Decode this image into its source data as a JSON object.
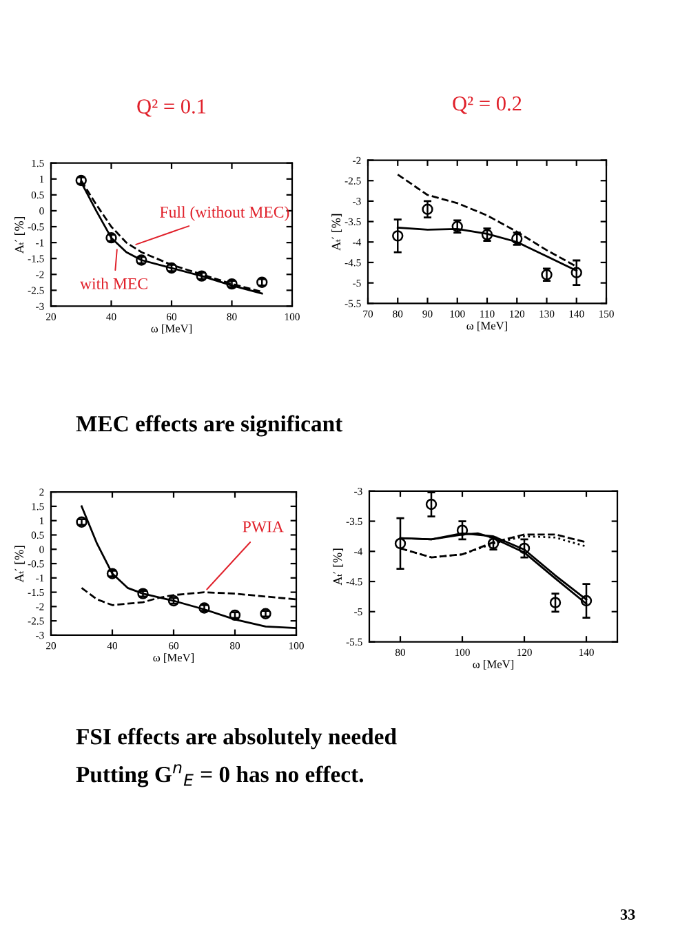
{
  "chart_data": [
    {
      "type": "line",
      "title": "Q² = 0.1",
      "xlabel": "ω [MeV]",
      "ylabel": "Aₜ′ [%]",
      "xlim": [
        20,
        100
      ],
      "xticks": [
        20,
        40,
        60,
        80,
        100
      ],
      "ylim": [
        -3,
        1.5
      ],
      "yticks": [
        -3,
        -2.5,
        -2,
        -1.5,
        -1,
        -0.5,
        0,
        0.5,
        1,
        1.5
      ],
      "grid": false,
      "series": [
        {
          "type": "scatter",
          "marker": "circle",
          "color": "#000000",
          "x": [
            30,
            40,
            50,
            60,
            70,
            80,
            90
          ],
          "values": [
            0.95,
            -0.85,
            -1.55,
            -1.8,
            -2.05,
            -2.3,
            -2.25
          ],
          "errors": [
            0.1,
            0.1,
            0.1,
            0.1,
            0.1,
            0.1,
            0.1
          ]
        },
        {
          "line_style": "solid",
          "color": "#000000",
          "x": [
            30,
            35,
            40,
            45,
            50,
            60,
            70,
            80,
            90
          ],
          "values": [
            0.9,
            0.0,
            -0.85,
            -1.3,
            -1.55,
            -1.8,
            -2.05,
            -2.35,
            -2.6
          ]
        },
        {
          "line_style": "dashed",
          "color": "#000000",
          "x": [
            30,
            35,
            40,
            45,
            50,
            60,
            70,
            80,
            90
          ],
          "values": [
            0.95,
            0.2,
            -0.5,
            -1.0,
            -1.3,
            -1.7,
            -2.0,
            -2.3,
            -2.55
          ]
        }
      ],
      "annotations": [
        {
          "text": "Full (without MEC)",
          "x": 47,
          "y": -1.1
        },
        {
          "text": "with MEC",
          "x": 42,
          "y": -1.1
        }
      ]
    },
    {
      "type": "line",
      "title": "Q² = 0.2",
      "xlabel": "ω [MeV]",
      "ylabel": "Aₜ′ [%]",
      "xlim": [
        70,
        150
      ],
      "xticks": [
        70,
        80,
        90,
        100,
        110,
        120,
        130,
        140,
        150
      ],
      "ylim": [
        -5.5,
        -2
      ],
      "yticks": [
        -5.5,
        -5,
        -4.5,
        -4,
        -3.5,
        -3,
        -2.5,
        -2
      ],
      "grid": false,
      "series": [
        {
          "type": "scatter",
          "marker": "circle",
          "color": "#000000",
          "x": [
            80,
            90,
            100,
            110,
            120,
            130,
            140
          ],
          "values": [
            -3.85,
            -3.2,
            -3.62,
            -3.82,
            -3.92,
            -4.8,
            -4.75
          ],
          "errors": [
            0.4,
            0.2,
            0.15,
            0.15,
            0.15,
            0.15,
            0.3
          ]
        },
        {
          "line_style": "solid",
          "color": "#000000",
          "x": [
            80,
            90,
            100,
            110,
            120,
            130,
            140
          ],
          "values": [
            -3.65,
            -3.7,
            -3.68,
            -3.8,
            -4.0,
            -4.35,
            -4.7
          ]
        },
        {
          "line_style": "dashed",
          "color": "#000000",
          "x": [
            80,
            90,
            100,
            110,
            120,
            130,
            140
          ],
          "values": [
            -2.35,
            -2.85,
            -3.05,
            -3.35,
            -3.75,
            -4.2,
            -4.6
          ]
        }
      ],
      "annotations": [
        "MEC effects are significant"
      ]
    },
    {
      "type": "line",
      "xlabel": "ω [MeV]",
      "ylabel": "Aₜ′ [%]",
      "xlim": [
        20,
        100
      ],
      "xticks": [
        20,
        40,
        60,
        80,
        100
      ],
      "ylim": [
        -3,
        2
      ],
      "yticks": [
        -3,
        -2.5,
        -2,
        -1.5,
        -1,
        -0.5,
        0,
        0.5,
        1,
        1.5,
        2
      ],
      "grid": false,
      "series": [
        {
          "type": "scatter",
          "marker": "circle",
          "color": "#000000",
          "x": [
            30,
            40,
            50,
            60,
            70,
            80,
            90
          ],
          "values": [
            0.95,
            -0.85,
            -1.55,
            -1.8,
            -2.05,
            -2.3,
            -2.25
          ],
          "errors": [
            0.1,
            0.1,
            0.1,
            0.1,
            0.1,
            0.1,
            0.1
          ]
        },
        {
          "line_style": "solid",
          "color": "#000000",
          "x": [
            30,
            35,
            40,
            45,
            50,
            60,
            70,
            80,
            90,
            100
          ],
          "values": [
            1.5,
            0.2,
            -0.85,
            -1.35,
            -1.55,
            -1.8,
            -2.1,
            -2.45,
            -2.7,
            -2.75
          ]
        },
        {
          "line_style": "dashed",
          "color": "#000000",
          "x": [
            30,
            35,
            40,
            50,
            55,
            60,
            70,
            80,
            90,
            100
          ],
          "values": [
            -1.35,
            -1.75,
            -1.95,
            -1.85,
            -1.7,
            -1.6,
            -1.5,
            -1.55,
            -1.65,
            -1.75
          ]
        }
      ],
      "annotations": [
        {
          "text": "PWIA",
          "x": 70,
          "y": -1.5
        }
      ]
    },
    {
      "type": "line",
      "xlabel": "ω [MeV]",
      "ylabel": "Aₜ′ [%]",
      "xlim": [
        70,
        150
      ],
      "xticks": [
        80,
        100,
        120,
        140
      ],
      "ylim": [
        -5.5,
        -3
      ],
      "yticks": [
        -5.5,
        -5,
        -4.5,
        -4,
        -3.5,
        -3
      ],
      "grid": false,
      "series": [
        {
          "type": "scatter",
          "marker": "circle",
          "color": "#000000",
          "x": [
            80,
            90,
            100,
            110,
            120,
            130,
            140
          ],
          "values": [
            -3.87,
            -3.22,
            -3.65,
            -3.87,
            -3.95,
            -4.85,
            -4.82
          ],
          "errors": [
            0.42,
            0.2,
            0.15,
            0.1,
            0.15,
            0.15,
            0.28
          ]
        },
        {
          "line_style": "solid",
          "color": "#000000",
          "x": [
            80,
            90,
            100,
            105,
            110,
            120,
            130,
            140
          ],
          "values": [
            -3.78,
            -3.8,
            -3.72,
            -3.7,
            -3.78,
            -4.02,
            -4.45,
            -4.87
          ]
        },
        {
          "line_style": "solid",
          "color": "#000000",
          "x": [
            80,
            90,
            100,
            110,
            120,
            130,
            140
          ],
          "values": [
            -3.78,
            -3.8,
            -3.7,
            -3.75,
            -3.97,
            -4.4,
            -4.8
          ]
        },
        {
          "line_style": "dashed",
          "color": "#000000",
          "x": [
            80,
            90,
            100,
            110,
            120,
            130,
            140
          ],
          "values": [
            -3.95,
            -4.1,
            -4.05,
            -3.85,
            -3.72,
            -3.72,
            -3.85
          ]
        },
        {
          "line_style": "dotted",
          "color": "#000000",
          "x": [
            80,
            90,
            100,
            110,
            120,
            130,
            140
          ],
          "values": [
            -3.95,
            -4.1,
            -4.05,
            -3.87,
            -3.75,
            -3.77,
            -3.92
          ]
        }
      ],
      "annotations": [
        "FSI effects are absolutely needed",
        "Putting G$^{n}$$_{E}$ = 0 has no effect.",
        "33"
      ]
    }
  ]
}
